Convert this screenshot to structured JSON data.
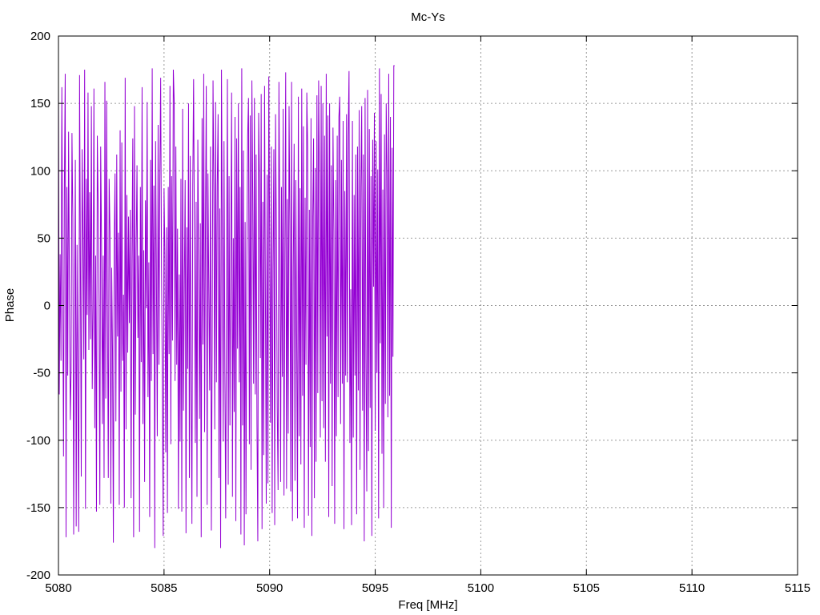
{
  "chart_data": {
    "type": "line",
    "title": "Mc-Ys",
    "xlabel": "Freq [MHz]",
    "ylabel": "Phase",
    "xlim": [
      5080,
      5115
    ],
    "ylim": [
      -200,
      200
    ],
    "xticks": [
      5080,
      5085,
      5090,
      5095,
      5100,
      5105,
      5110,
      5115
    ],
    "yticks": [
      -200,
      -150,
      -100,
      -50,
      0,
      50,
      100,
      150,
      200
    ],
    "grid": true,
    "legend": "none",
    "series": [
      {
        "color": "#9400d3",
        "x_start": 5080.0,
        "x_step": 0.04,
        "values": [
          164,
          -66,
          38,
          -41,
          162,
          24,
          -112,
          86,
          172,
          -172,
          88,
          -52,
          129,
          14,
          -85,
          -48,
          128,
          65,
          -170,
          -12,
          108,
          -164,
          45,
          -61,
          -168,
          171,
          32,
          -127,
          116,
          52,
          -40,
          175,
          -151,
          94,
          -7,
          158,
          -33,
          84,
          -25,
          148,
          -62,
          -2,
          161,
          -91,
          37,
          -153,
          126,
          76,
          4,
          -148,
          118,
          45,
          -88,
          37,
          -128,
          166,
          -69,
          152,
          2,
          -128,
          94,
          54,
          -147,
          28,
          -33,
          -176,
          48,
          98,
          -86,
          112,
          -23,
          54,
          -148,
          130,
          -64,
          121,
          -41,
          8,
          -150,
          169,
          -92,
          82,
          -35,
          66,
          -13,
          71,
          -143,
          34,
          124,
          -172,
          148,
          -81,
          42,
          104,
          -24,
          37,
          -168,
          88,
          -42,
          162,
          -88,
          41,
          -131,
          78,
          -2,
          151,
          -68,
          32,
          -157,
          108,
          -56,
          176,
          -36,
          89,
          -180,
          122,
          21,
          -97,
          134,
          -44,
          93,
          169,
          28,
          -62,
          -171,
          87,
          38,
          -109,
          58,
          -154,
          88,
          -36,
          163,
          -103,
          96,
          -26,
          175,
          152,
          -56,
          118,
          -44,
          57,
          -151,
          23,
          -101,
          94,
          -153,
          146,
          -78,
          12,
          93,
          -169,
          58,
          -47,
          150,
          -128,
          111,
          -53,
          -162,
          89,
          168,
          43,
          -102,
          77,
          -142,
          123,
          31,
          -84,
          61,
          -172,
          139,
          -29,
          172,
          -94,
          56,
          163,
          -148,
          98,
          10,
          -63,
          118,
          -167,
          -31,
          167,
          85,
          -92,
          151,
          -57,
          89,
          142,
          -128,
          72,
          -180,
          175,
          48,
          -101,
          122,
          -47,
          -158,
          22,
          168,
          -133,
          96,
          -89,
          36,
          158,
          -142,
          50,
          -79,
          140,
          -160,
          124,
          -32,
          150,
          -57,
          88,
          -170,
          176,
          -89,
          115,
          -178,
          62,
          -155,
          34,
          126,
          154,
          -103,
          141,
          -122,
          167,
          80,
          -58,
          154,
          -66,
          112,
          -88,
          -175,
          143,
          91,
          -39,
          157,
          -166,
          77,
          -111,
          163,
          4,
          -147,
          97,
          -132,
          170,
          51,
          -87,
          118,
          -154,
          28,
          116,
          -163,
          142,
          52,
          -76,
          -137,
          166,
          64,
          -131,
          88,
          -53,
          146,
          -141,
          32,
          173,
          -136,
          79,
          -95,
          148,
          59,
          -138,
          166,
          -160,
          28,
          120,
          -130,
          93,
          -23,
          -158,
          155,
          -97,
          87,
          -118,
          161,
          -67,
          133,
          -165,
          80,
          -44,
          158,
          118,
          -156,
          71,
          -105,
          139,
          -171,
          66,
          124,
          -143,
          102,
          -116,
          156,
          -65,
          167,
          91,
          -98,
          163,
          -71,
          150,
          -91,
          126,
          -116,
          172,
          -23,
          141,
          -157,
          150,
          -58,
          104,
          -134,
          132,
          55,
          -162,
          93,
          -97,
          126,
          -68,
          140,
          155,
          -88,
          108,
          -58,
          137,
          -166,
          85,
          -52,
          142,
          -57,
          126,
          174,
          -102,
          12,
          -163,
          137,
          -98,
          82,
          -52,
          112,
          -155,
          118,
          -63,
          145,
          -122,
          88,
          148,
          -78,
          112,
          -175,
          154,
          -42,
          -138,
          160,
          -108,
          131,
          -76,
          96,
          -171,
          123,
          14,
          143,
          -93,
          122,
          -50,
          101,
          -158,
          176,
          -28,
          157,
          -110,
          86,
          -150,
          127,
          -73,
          150,
          98,
          -83,
          172,
          -67,
          140,
          -165,
          117,
          -38,
          178,
          178
        ]
      }
    ]
  }
}
